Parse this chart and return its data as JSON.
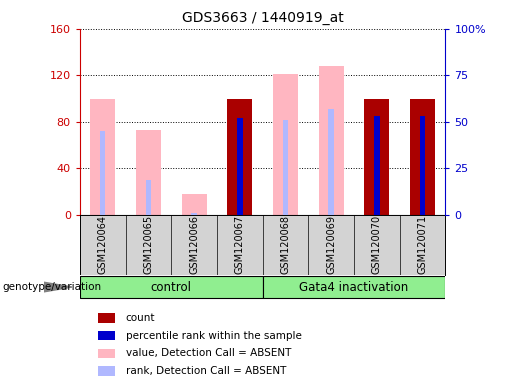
{
  "title": "GDS3663 / 1440919_at",
  "samples": [
    "GSM120064",
    "GSM120065",
    "GSM120066",
    "GSM120067",
    "GSM120068",
    "GSM120069",
    "GSM120070",
    "GSM120071"
  ],
  "groups": [
    {
      "label": "control",
      "indices": [
        0,
        1,
        2,
        3
      ],
      "color": "#90ee90"
    },
    {
      "label": "Gata4 inactivation",
      "indices": [
        4,
        5,
        6,
        7
      ],
      "color": "#90ee90"
    }
  ],
  "count": [
    null,
    null,
    null,
    100,
    null,
    null,
    100,
    100
  ],
  "percentile_rank_pct": [
    null,
    null,
    null,
    52,
    null,
    null,
    53,
    53
  ],
  "value_absent": [
    100,
    73,
    18,
    null,
    121,
    128,
    null,
    null
  ],
  "rank_absent_pct": [
    45,
    19,
    1,
    null,
    51,
    57,
    null,
    null
  ],
  "left_ylim": [
    0,
    160
  ],
  "right_ylim": [
    0,
    100
  ],
  "left_yticks": [
    0,
    40,
    80,
    120,
    160
  ],
  "right_yticks": [
    0,
    25,
    50,
    75,
    100
  ],
  "right_yticklabels": [
    "0",
    "25",
    "50",
    "75",
    "100%"
  ],
  "wide_bar_width": 0.55,
  "thin_bar_width": 0.12,
  "colors": {
    "count": "#aa0000",
    "percentile_rank": "#0000cc",
    "value_absent": "#ffb6c1",
    "rank_absent": "#b0b8ff",
    "left_axis": "#cc0000",
    "right_axis": "#0000cc"
  },
  "legend": [
    {
      "label": "count",
      "color": "#aa0000"
    },
    {
      "label": "percentile rank within the sample",
      "color": "#0000cc"
    },
    {
      "label": "value, Detection Call = ABSENT",
      "color": "#ffb6c1"
    },
    {
      "label": "rank, Detection Call = ABSENT",
      "color": "#b0b8ff"
    }
  ],
  "genotype_label": "genotype/variation"
}
